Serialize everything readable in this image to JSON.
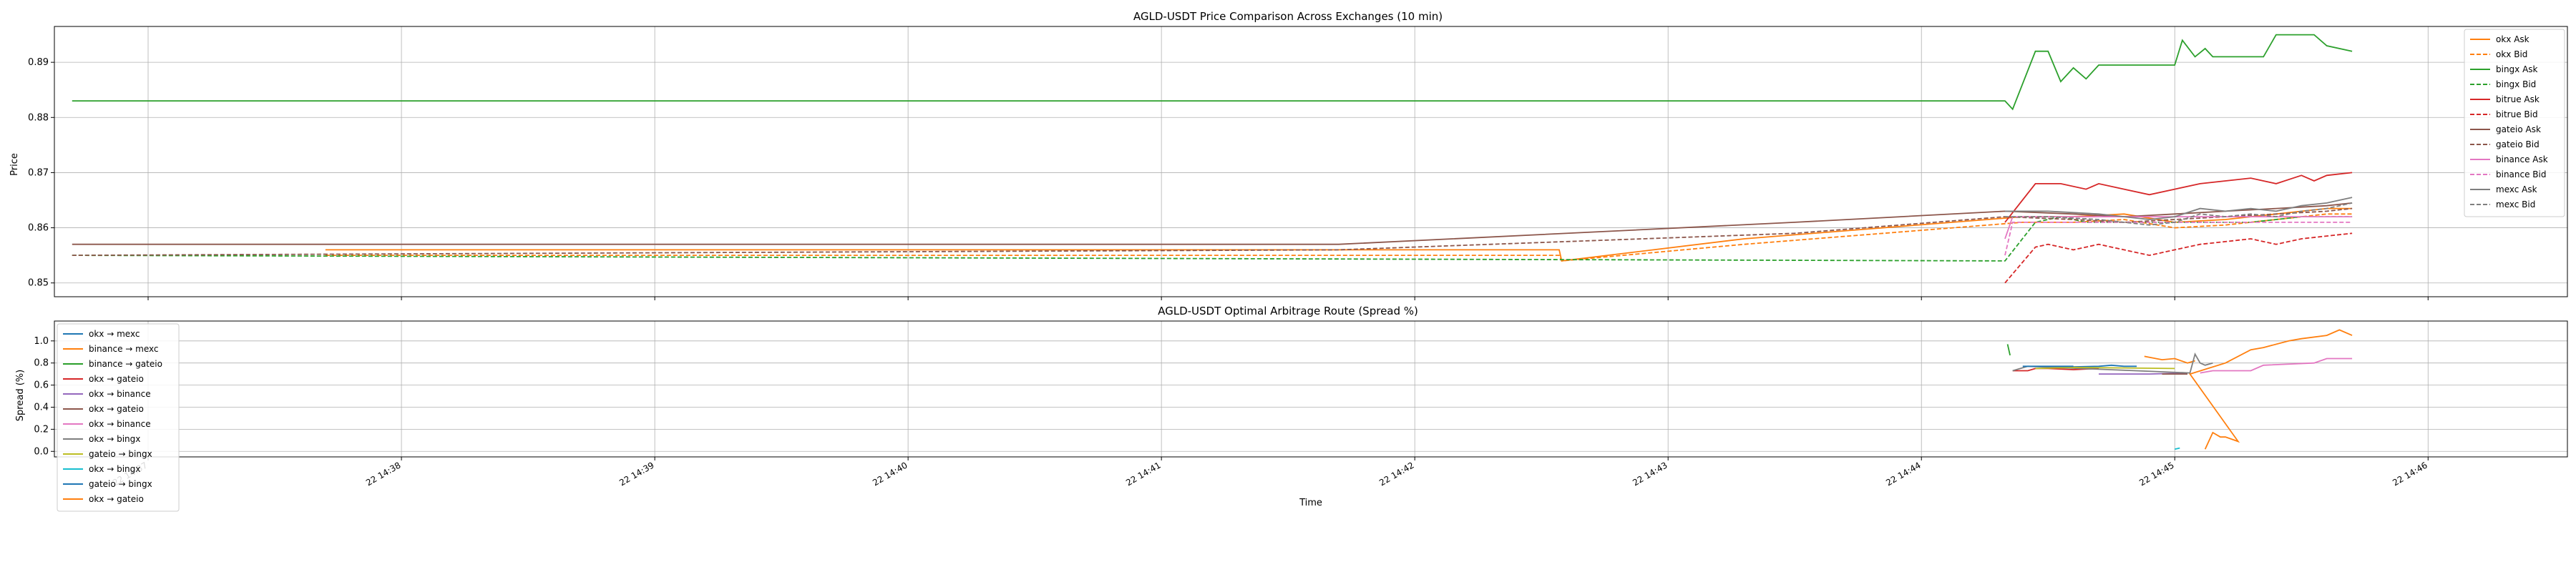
{
  "chart_data": [
    {
      "type": "line",
      "title": "AGLD-USDT Price Comparison Across Exchanges (10 min)",
      "xlabel": "",
      "ylabel": "Price",
      "ylim": [
        0.8475,
        0.8965
      ],
      "xlim": [
        -0.37,
        9.55
      ],
      "grid": true,
      "legend_position": "top-right",
      "x_unit": "minutes after 22 14:37",
      "yticks": [
        0.85,
        0.86,
        0.87,
        0.88,
        0.89
      ],
      "ytick_labels": [
        "0.85",
        "0.86",
        "0.87",
        "0.88",
        "0.89"
      ],
      "series": [
        {
          "name": "okx Ask",
          "color": "#ff7f0e",
          "dash": false,
          "x": [
            0.7,
            5.57,
            5.58,
            6.3,
            7.4,
            7.6,
            7.8,
            8.0,
            8.2,
            8.4,
            8.6,
            8.7
          ],
          "y": [
            0.856,
            0.856,
            0.854,
            0.858,
            0.862,
            0.862,
            0.8625,
            0.861,
            0.8615,
            0.8625,
            0.8635,
            0.8635
          ]
        },
        {
          "name": "okx Bid",
          "color": "#ff7f0e",
          "dash": true,
          "x": [
            0.7,
            5.57,
            5.58,
            6.3,
            7.4,
            7.6,
            7.8,
            8.0,
            8.2,
            8.4,
            8.6,
            8.7
          ],
          "y": [
            0.855,
            0.855,
            0.854,
            0.857,
            0.861,
            0.861,
            0.8615,
            0.86,
            0.8605,
            0.8615,
            0.8625,
            0.8625
          ]
        },
        {
          "name": "bingx Ask",
          "color": "#2ca02c",
          "dash": false,
          "x": [
            -0.3,
            7.33,
            7.36,
            7.45,
            7.5,
            7.55,
            7.6,
            7.65,
            7.7,
            7.8,
            7.9,
            8.0,
            8.03,
            8.08,
            8.12,
            8.15,
            8.2,
            8.35,
            8.4,
            8.55,
            8.6,
            8.7
          ],
          "y": [
            0.883,
            0.883,
            0.8815,
            0.892,
            0.892,
            0.8865,
            0.889,
            0.887,
            0.8895,
            0.8895,
            0.8895,
            0.8895,
            0.894,
            0.891,
            0.8925,
            0.891,
            0.891,
            0.891,
            0.895,
            0.895,
            0.893,
            0.892
          ]
        },
        {
          "name": "bingx Bid",
          "color": "#2ca02c",
          "dash": true,
          "x": [
            -0.3,
            7.33,
            7.45,
            7.55,
            7.65,
            8.0,
            8.3,
            8.5,
            8.7
          ],
          "y": [
            0.855,
            0.854,
            0.861,
            0.862,
            0.861,
            0.861,
            0.861,
            0.862,
            0.862
          ]
        },
        {
          "name": "bitrue Ask",
          "color": "#d62728",
          "dash": false,
          "x": [
            7.33,
            7.45,
            7.55,
            7.65,
            7.7,
            7.8,
            7.9,
            8.0,
            8.1,
            8.2,
            8.3,
            8.4,
            8.5,
            8.55,
            8.6,
            8.7
          ],
          "y": [
            0.861,
            0.868,
            0.868,
            0.867,
            0.868,
            0.867,
            0.866,
            0.867,
            0.868,
            0.8685,
            0.869,
            0.868,
            0.8695,
            0.8685,
            0.8695,
            0.87
          ]
        },
        {
          "name": "bitrue Bid",
          "color": "#d62728",
          "dash": true,
          "x": [
            7.33,
            7.45,
            7.5,
            7.6,
            7.7,
            7.8,
            7.9,
            8.0,
            8.1,
            8.2,
            8.3,
            8.4,
            8.5,
            8.6,
            8.7
          ],
          "y": [
            0.85,
            0.8565,
            0.857,
            0.856,
            0.857,
            0.856,
            0.855,
            0.856,
            0.857,
            0.8575,
            0.858,
            0.857,
            0.858,
            0.8585,
            0.859
          ]
        },
        {
          "name": "gateio Ask",
          "color": "#8c564b",
          "dash": false,
          "x": [
            -0.3,
            4.7,
            6.5,
            7.33,
            7.6,
            7.8,
            8.0,
            8.2,
            8.4,
            8.6,
            8.7
          ],
          "y": [
            0.857,
            0.857,
            0.861,
            0.863,
            0.8625,
            0.862,
            0.8625,
            0.863,
            0.8635,
            0.864,
            0.8645
          ]
        },
        {
          "name": "gateio Bid",
          "color": "#8c564b",
          "dash": true,
          "x": [
            -0.3,
            4.7,
            6.5,
            7.33,
            7.6,
            7.8,
            8.0,
            8.2,
            8.4,
            8.6,
            8.7
          ],
          "y": [
            0.855,
            0.856,
            0.859,
            0.862,
            0.8615,
            0.861,
            0.8615,
            0.862,
            0.8625,
            0.863,
            0.8635
          ]
        },
        {
          "name": "binance Ask",
          "color": "#e377c2",
          "dash": false,
          "x": [
            7.33,
            7.36,
            7.45,
            7.6,
            8.0,
            8.3,
            8.7
          ],
          "y": [
            0.858,
            0.862,
            0.862,
            0.862,
            0.862,
            0.862,
            0.862
          ]
        },
        {
          "name": "binance Bid",
          "color": "#e377c2",
          "dash": true,
          "x": [
            7.33,
            7.36,
            7.45,
            7.6,
            8.0,
            8.3,
            8.7
          ],
          "y": [
            0.855,
            0.861,
            0.861,
            0.861,
            0.861,
            0.861,
            0.861
          ]
        },
        {
          "name": "mexc Ask",
          "color": "#7f7f7f",
          "dash": false,
          "x": [
            7.33,
            7.5,
            7.7,
            7.8,
            7.9,
            8.0,
            8.1,
            8.2,
            8.3,
            8.4,
            8.5,
            8.6,
            8.7
          ],
          "y": [
            0.863,
            0.863,
            0.8625,
            0.862,
            0.8615,
            0.862,
            0.8635,
            0.863,
            0.8635,
            0.863,
            0.864,
            0.8645,
            0.8655
          ]
        },
        {
          "name": "mexc Bid",
          "color": "#7f7f7f",
          "dash": true,
          "x": [
            7.33,
            7.5,
            7.7,
            7.8,
            7.9,
            8.0,
            8.1,
            8.2,
            8.3,
            8.4,
            8.5,
            8.6,
            8.7
          ],
          "y": [
            0.862,
            0.862,
            0.8615,
            0.861,
            0.8605,
            0.861,
            0.8625,
            0.862,
            0.8625,
            0.862,
            0.863,
            0.8635,
            0.8645
          ]
        }
      ]
    },
    {
      "type": "line",
      "title": "AGLD-USDT Optimal Arbitrage Route (Spread %)",
      "xlabel": "Time",
      "ylabel": "Spread (%)",
      "ylim": [
        -0.05,
        1.18
      ],
      "xlim": [
        -0.37,
        9.55
      ],
      "grid": true,
      "legend_position": "top-left",
      "xticks": [
        0,
        1,
        2,
        3,
        4,
        5,
        6,
        7,
        8,
        9
      ],
      "xtick_labels": [
        "22 14:37",
        "22 14:38",
        "22 14:39",
        "22 14:40",
        "22 14:41",
        "22 14:42",
        "22 14:43",
        "22 14:44",
        "22 14:45",
        "22 14:46"
      ],
      "yticks": [
        0.0,
        0.2,
        0.4,
        0.6,
        0.8,
        1.0
      ],
      "ytick_labels": [
        "0.0",
        "0.2",
        "0.4",
        "0.6",
        "0.8",
        "1.0"
      ],
      "series": [
        {
          "name": "okx → mexc",
          "color": "#1f77b4",
          "x": [
            7.5,
            7.7,
            7.75,
            7.8,
            7.85
          ],
          "y": [
            0.76,
            0.77,
            0.78,
            0.77,
            0.77
          ]
        },
        {
          "name": "binance → mexc",
          "color": "#ff7f0e",
          "x": [
            7.88,
            7.95,
            8.0,
            8.05,
            8.08
          ],
          "y": [
            0.86,
            0.83,
            0.84,
            0.8,
            0.82
          ]
        },
        {
          "name": "binance → gateio",
          "color": "#2ca02c",
          "x": [
            7.34,
            7.35
          ],
          "y": [
            0.97,
            0.87
          ]
        },
        {
          "name": "okx → gateio",
          "color": "#d62728",
          "x": [
            7.36,
            7.42,
            7.45,
            7.5,
            7.6,
            7.7
          ],
          "y": [
            0.73,
            0.73,
            0.75,
            0.75,
            0.74,
            0.75
          ]
        },
        {
          "name": "okx → binance",
          "color": "#9467bd",
          "x": [
            7.7,
            7.9,
            8.05
          ],
          "y": [
            0.7,
            0.7,
            0.71
          ]
        },
        {
          "name": "okx → gateio",
          "color": "#8c564b",
          "x": [
            7.95,
            8.0,
            8.05
          ],
          "y": [
            0.7,
            0.7,
            0.7
          ]
        },
        {
          "name": "okx → binance",
          "color": "#e377c2",
          "x": [
            8.1,
            8.15,
            8.3,
            8.35,
            8.55,
            8.6,
            8.7
          ],
          "y": [
            0.71,
            0.73,
            0.73,
            0.78,
            0.8,
            0.84,
            0.84
          ]
        },
        {
          "name": "okx → bingx",
          "color": "#7f7f7f",
          "x": [
            7.36,
            7.42,
            8.06,
            8.08,
            8.1,
            8.12,
            8.15
          ],
          "y": [
            0.73,
            0.77,
            0.71,
            0.88,
            0.8,
            0.78,
            0.8
          ]
        },
        {
          "name": "gateio → bingx",
          "color": "#bcbd22",
          "x": [
            7.45,
            7.6,
            8.0
          ],
          "y": [
            0.75,
            0.76,
            0.75
          ]
        },
        {
          "name": "okx → bingx",
          "color": "#17becf",
          "x": [
            8.0,
            8.02
          ],
          "y": [
            0.02,
            0.03
          ]
        },
        {
          "name": "gateio → bingx",
          "color": "#1f77b4",
          "x": [
            7.4,
            7.6
          ],
          "y": [
            0.77,
            0.77
          ]
        },
        {
          "name": "okx → gateio",
          "color": "#ff7f0e",
          "x": [
            8.12,
            8.15,
            8.18,
            8.2,
            8.25,
            8.06,
            8.2,
            8.3,
            8.35,
            8.45,
            8.5,
            8.6,
            8.65,
            8.7
          ],
          "y": [
            0.02,
            0.17,
            0.13,
            0.13,
            0.09,
            0.7,
            0.8,
            0.92,
            0.94,
            1.0,
            1.02,
            1.05,
            1.1,
            1.05
          ]
        }
      ]
    }
  ]
}
